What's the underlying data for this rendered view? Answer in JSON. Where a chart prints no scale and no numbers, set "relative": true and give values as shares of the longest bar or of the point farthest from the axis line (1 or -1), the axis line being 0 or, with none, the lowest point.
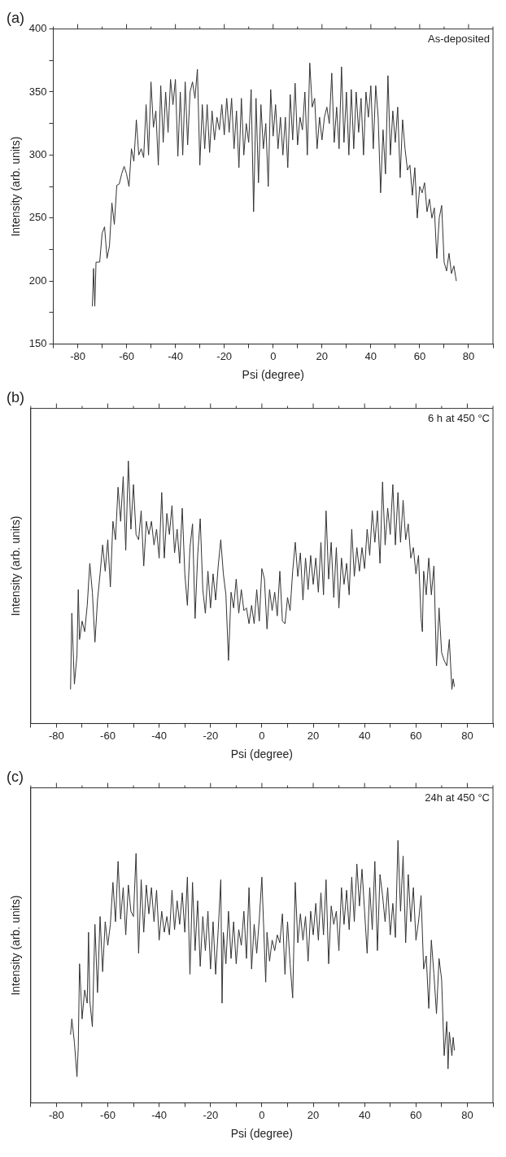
{
  "chart_data": [
    {
      "type": "line",
      "title": "(a)",
      "xlabel": "Psi (degree)",
      "ylabel": "Intensity (arb. units)",
      "annotations": [
        "As-deposited"
      ],
      "color": "#333333",
      "grid": false,
      "legend": false,
      "xlim": [
        -90,
        90
      ],
      "xticks": [
        {
          "value": -90,
          "label": null
        },
        -80,
        {
          "value": -70,
          "label": null
        },
        -60,
        {
          "value": -50,
          "label": null
        },
        -40,
        {
          "value": -30,
          "label": null
        },
        -20,
        {
          "value": -10,
          "label": null
        },
        0,
        {
          "value": 10,
          "label": null
        },
        20,
        {
          "value": 30,
          "label": null
        },
        40,
        {
          "value": 50,
          "label": null
        },
        60,
        {
          "value": 70,
          "label": null
        },
        80,
        {
          "value": 90,
          "label": null
        }
      ],
      "ylim": [
        150,
        400
      ],
      "yticks": [
        150,
        {
          "value": 175,
          "label": null
        },
        200,
        {
          "value": 225,
          "label": null
        },
        250,
        {
          "value": 275,
          "label": null
        },
        300,
        {
          "value": 325,
          "label": null
        },
        350,
        {
          "value": 375,
          "label": null
        },
        400
      ],
      "x": [
        -74,
        -73.5,
        -73,
        -72.5,
        -71,
        -70,
        -69,
        -68,
        -67,
        -66,
        -65,
        -64,
        -63,
        -62,
        -61,
        -60,
        -59,
        -58,
        -57,
        -56,
        -55,
        -54,
        -53,
        -52,
        -51,
        -50,
        -49,
        -48,
        -47,
        -46,
        -45,
        -44,
        -43,
        -42,
        -41,
        -40,
        -39,
        -38,
        -37,
        -36,
        -35,
        -34,
        -33,
        -32,
        -31,
        -30,
        -29,
        -28,
        -27,
        -26,
        -25,
        -24,
        -23,
        -22,
        -21,
        -20,
        -19,
        -18,
        -17,
        -16,
        -15,
        -14,
        -13,
        -12,
        -11,
        -10,
        -9,
        -8,
        -7,
        -6,
        -5,
        -4,
        -3,
        -2,
        -1,
        0,
        1,
        2,
        3,
        4,
        5,
        6,
        7,
        8,
        9,
        10,
        11,
        12,
        13,
        14,
        15,
        16,
        17,
        18,
        19,
        20,
        21,
        22,
        23,
        24,
        25,
        26,
        27,
        28,
        29,
        30,
        31,
        32,
        33,
        34,
        35,
        36,
        37,
        38,
        39,
        40,
        41,
        42,
        43,
        44,
        45,
        46,
        47,
        48,
        49,
        50,
        51,
        52,
        53,
        54,
        55,
        56,
        57,
        58,
        59,
        60,
        61,
        62,
        63,
        64,
        65,
        66,
        67,
        68,
        69,
        70,
        71,
        72,
        73,
        74,
        75
      ],
      "values": [
        180,
        210,
        180,
        215,
        215,
        238,
        243,
        218,
        228,
        262,
        245,
        276,
        277,
        285,
        291,
        285,
        275,
        305,
        295,
        328,
        300,
        305,
        298,
        340,
        300,
        358,
        322,
        335,
        292,
        355,
        310,
        350,
        318,
        360,
        340,
        360,
        299,
        350,
        300,
        358,
        308,
        350,
        358,
        345,
        368,
        292,
        340,
        305,
        340,
        302,
        335,
        312,
        330,
        320,
        340,
        316,
        345,
        318,
        345,
        305,
        335,
        290,
        345,
        300,
        325,
        310,
        352,
        255,
        345,
        278,
        340,
        305,
        325,
        275,
        352,
        315,
        340,
        305,
        330,
        300,
        330,
        290,
        348,
        312,
        357,
        308,
        330,
        320,
        350,
        300,
        373,
        338,
        345,
        305,
        330,
        312,
        330,
        338,
        325,
        365,
        310,
        338,
        305,
        370,
        310,
        350,
        300,
        352,
        305,
        350,
        318,
        345,
        300,
        350,
        330,
        355,
        305,
        355,
        330,
        270,
        320,
        285,
        363,
        300,
        335,
        310,
        338,
        282,
        328,
        305,
        288,
        292,
        268,
        290,
        250,
        275,
        270,
        278,
        255,
        265,
        250,
        258,
        218,
        250,
        260,
        215,
        208,
        222,
        206,
        212,
        200
      ]
    },
    {
      "type": "line",
      "title": "(b)",
      "xlabel": "Psi (degree)",
      "ylabel": "Intensity (arb. units)",
      "annotations": [
        "6 h at 450 °C"
      ],
      "color": "#333333",
      "grid": false,
      "legend": false,
      "relative": true,
      "xlim": [
        -90,
        90
      ],
      "xticks": [
        {
          "value": -90,
          "label": null
        },
        -80,
        {
          "value": -70,
          "label": null
        },
        -60,
        {
          "value": -50,
          "label": null
        },
        -40,
        {
          "value": -30,
          "label": null
        },
        -20,
        {
          "value": -10,
          "label": null
        },
        0,
        {
          "value": 10,
          "label": null
        },
        20,
        {
          "value": 30,
          "label": null
        },
        40,
        {
          "value": 50,
          "label": null
        },
        60,
        {
          "value": 70,
          "label": null
        },
        80,
        {
          "value": 90,
          "label": null
        }
      ],
      "x": [
        -74.5,
        -74,
        -73,
        -72,
        -71.5,
        -71,
        -70,
        -69,
        -68,
        -67,
        -66,
        -65,
        -64,
        -63,
        -62,
        -61,
        -60,
        -59,
        -58,
        -57,
        -56,
        -55,
        -54,
        -53,
        -52,
        -51,
        -50,
        -49,
        -48,
        -47,
        -46,
        -45,
        -44,
        -43,
        -42,
        -41,
        -40,
        -39,
        -38,
        -37,
        -36,
        -35,
        -34,
        -33,
        -32,
        -31,
        -30,
        -29,
        -28,
        -27,
        -26,
        -25,
        -24,
        -23,
        -22,
        -21,
        -20,
        -19,
        -18,
        -17,
        -16,
        -15,
        -14,
        -13,
        -12,
        -11,
        -10,
        -9,
        -8,
        -7,
        -6,
        -5,
        -4,
        -3,
        -2,
        -1,
        0,
        1,
        2,
        3,
        4,
        5,
        6,
        7,
        8,
        9,
        10,
        11,
        12,
        13,
        14,
        15,
        16,
        17,
        18,
        19,
        20,
        21,
        22,
        23,
        24,
        25,
        26,
        27,
        28,
        29,
        30,
        31,
        32,
        33,
        34,
        35,
        36,
        37,
        38,
        39,
        40,
        41,
        42,
        43,
        44,
        45,
        46,
        47,
        48,
        49,
        50,
        51,
        52,
        53,
        54,
        55,
        56,
        57,
        58,
        59,
        60,
        61,
        62,
        62.5,
        63,
        64,
        65,
        66,
        67,
        68,
        69,
        70,
        71,
        72,
        73,
        74,
        74.5,
        75
      ],
      "values": [
        0.13,
        0.42,
        0.15,
        0.26,
        0.51,
        0.32,
        0.39,
        0.35,
        0.45,
        0.61,
        0.5,
        0.31,
        0.47,
        0.57,
        0.68,
        0.58,
        0.7,
        0.52,
        0.77,
        0.7,
        0.9,
        0.77,
        0.94,
        0.66,
        1.0,
        0.74,
        0.91,
        0.72,
        0.7,
        0.81,
        0.6,
        0.77,
        0.72,
        0.77,
        0.68,
        0.74,
        0.63,
        0.88,
        0.63,
        0.8,
        0.72,
        0.83,
        0.65,
        0.74,
        0.61,
        0.82,
        0.57,
        0.45,
        0.67,
        0.76,
        0.4,
        0.64,
        0.78,
        0.51,
        0.42,
        0.58,
        0.44,
        0.57,
        0.47,
        0.6,
        0.7,
        0.57,
        0.49,
        0.24,
        0.5,
        0.44,
        0.55,
        0.42,
        0.51,
        0.43,
        0.44,
        0.38,
        0.45,
        0.38,
        0.51,
        0.39,
        0.59,
        0.55,
        0.36,
        0.51,
        0.43,
        0.5,
        0.41,
        0.58,
        0.39,
        0.38,
        0.48,
        0.43,
        0.58,
        0.69,
        0.56,
        0.65,
        0.47,
        0.63,
        0.51,
        0.64,
        0.53,
        0.63,
        0.5,
        0.69,
        0.49,
        0.81,
        0.55,
        0.69,
        0.48,
        0.67,
        0.44,
        0.63,
        0.53,
        0.61,
        0.49,
        0.74,
        0.56,
        0.67,
        0.58,
        0.67,
        0.59,
        0.74,
        0.64,
        0.81,
        0.69,
        0.81,
        0.61,
        0.92,
        0.68,
        0.82,
        0.72,
        0.91,
        0.68,
        0.88,
        0.69,
        0.85,
        0.7,
        0.76,
        0.63,
        0.67,
        0.57,
        0.64,
        0.4,
        0.35,
        0.58,
        0.49,
        0.63,
        0.49,
        0.6,
        0.22,
        0.44,
        0.27,
        0.24,
        0.22,
        0.32,
        0.13,
        0.17,
        0.14
      ]
    },
    {
      "type": "line",
      "title": "(c)",
      "xlabel": "Psi (degree)",
      "ylabel": "Intensity (arb. units)",
      "annotations": [
        "24h at 450 °C"
      ],
      "color": "#333333",
      "grid": false,
      "legend": false,
      "relative": true,
      "xlim": [
        -90,
        90
      ],
      "xticks": [
        {
          "value": -90,
          "label": null
        },
        -80,
        {
          "value": -70,
          "label": null
        },
        -60,
        {
          "value": -50,
          "label": null
        },
        -40,
        {
          "value": -30,
          "label": null
        },
        -20,
        {
          "value": -10,
          "label": null
        },
        0,
        {
          "value": 10,
          "label": null
        },
        20,
        {
          "value": 30,
          "label": null
        },
        40,
        {
          "value": 50,
          "label": null
        },
        60,
        {
          "value": 70,
          "label": null
        },
        80,
        {
          "value": 90,
          "label": null
        }
      ],
      "x": [
        -74.5,
        -74,
        -73,
        -72,
        -71.5,
        -71,
        -70,
        -69,
        -68,
        -67.5,
        -67,
        -66,
        -65,
        -64,
        -63,
        -62,
        -61,
        -60,
        -59,
        -58,
        -57,
        -56,
        -55,
        -54,
        -53,
        -52,
        -51,
        -50,
        -49,
        -48,
        -47,
        -46,
        -45,
        -44,
        -43,
        -42,
        -41,
        -40,
        -39,
        -38,
        -37,
        -36,
        -35,
        -34,
        -33,
        -32,
        -31,
        -30,
        -29,
        -28,
        -27,
        -26,
        -25,
        -24,
        -23,
        -22,
        -21,
        -20,
        -19,
        -18,
        -17,
        -16,
        -15.5,
        -15,
        -14,
        -13,
        -12,
        -11,
        -10,
        -9,
        -8,
        -7,
        -6,
        -5,
        -4,
        -3,
        -2,
        -1,
        0,
        1,
        1.5,
        2,
        3,
        4,
        5,
        6,
        7,
        8,
        9,
        10,
        11,
        12,
        13,
        14,
        15,
        16,
        17,
        18,
        19,
        20,
        21,
        22,
        23,
        24,
        25,
        26,
        27,
        28,
        29,
        30,
        31,
        32,
        33,
        34,
        35,
        36,
        37,
        38,
        39,
        40,
        41,
        42,
        43,
        44,
        45,
        46,
        47,
        48,
        49,
        50,
        51,
        52,
        53,
        54,
        55,
        56,
        57,
        58,
        59,
        60,
        61,
        62,
        63,
        64,
        65,
        66,
        67,
        68,
        69,
        70,
        71,
        72,
        72.5,
        73,
        74,
        74.5,
        75
      ],
      "values": [
        0.26,
        0.32,
        0.23,
        0.1,
        0.21,
        0.53,
        0.32,
        0.43,
        0.38,
        0.65,
        0.39,
        0.29,
        0.68,
        0.42,
        0.71,
        0.5,
        0.69,
        0.6,
        0.68,
        0.84,
        0.69,
        0.92,
        0.7,
        0.82,
        0.64,
        0.83,
        0.73,
        0.71,
        0.95,
        0.57,
        0.85,
        0.65,
        0.83,
        0.72,
        0.82,
        0.69,
        0.81,
        0.62,
        0.73,
        0.65,
        0.71,
        0.64,
        0.81,
        0.66,
        0.77,
        0.68,
        0.8,
        0.65,
        0.86,
        0.49,
        0.84,
        0.58,
        0.77,
        0.52,
        0.71,
        0.58,
        0.73,
        0.51,
        0.69,
        0.49,
        0.66,
        0.85,
        0.38,
        0.65,
        0.53,
        0.73,
        0.55,
        0.69,
        0.53,
        0.66,
        0.6,
        0.73,
        0.55,
        0.82,
        0.51,
        0.68,
        0.57,
        0.7,
        0.86,
        0.59,
        0.46,
        0.65,
        0.54,
        0.62,
        0.58,
        0.64,
        0.61,
        0.72,
        0.49,
        0.69,
        0.53,
        0.4,
        0.84,
        0.61,
        0.72,
        0.62,
        0.71,
        0.54,
        0.73,
        0.64,
        0.76,
        0.62,
        0.8,
        0.64,
        0.85,
        0.53,
        0.75,
        0.68,
        0.73,
        0.58,
        0.82,
        0.68,
        0.81,
        0.66,
        0.86,
        0.69,
        0.91,
        0.75,
        0.89,
        0.73,
        0.57,
        0.82,
        0.66,
        0.92,
        0.58,
        0.87,
        0.79,
        0.69,
        0.82,
        0.64,
        0.76,
        0.63,
        1.0,
        0.73,
        0.94,
        0.61,
        0.87,
        0.69,
        0.82,
        0.62,
        0.69,
        0.79,
        0.51,
        0.56,
        0.36,
        0.62,
        0.49,
        0.34,
        0.55,
        0.47,
        0.18,
        0.31,
        0.13,
        0.27,
        0.18,
        0.25,
        0.2
      ]
    }
  ]
}
